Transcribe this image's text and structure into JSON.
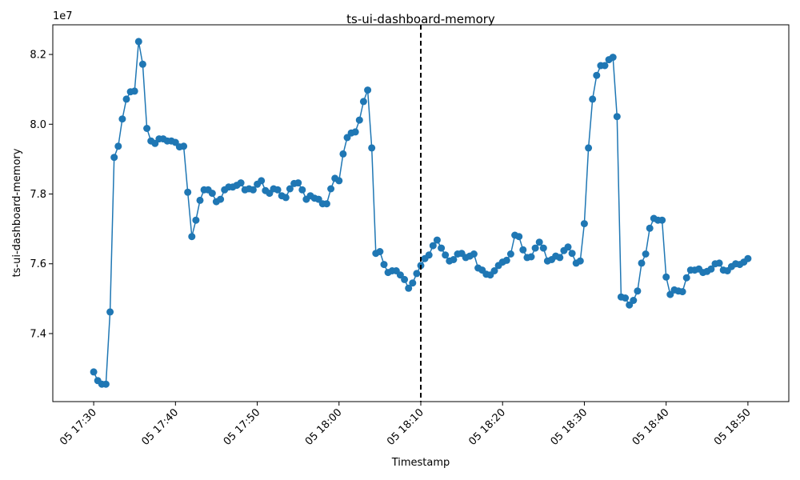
{
  "chart_data": {
    "type": "line",
    "title": "ts-ui-dashboard-memory",
    "xlabel": "Timestamp",
    "ylabel": "ts-ui-dashboard-memory",
    "y_multiplier": "1e7",
    "x_start": "17:30",
    "x_step_minutes": 0.5,
    "xlim": [
      "17:25",
      "18:55"
    ],
    "ylim": [
      72.05,
      82.85
    ],
    "x_ticks": [
      "05 17:30",
      "05 17:40",
      "05 17:50",
      "05 18:00",
      "05 18:10",
      "05 18:20",
      "05 18:30",
      "05 18:40",
      "05 18:50"
    ],
    "y_ticks": [
      "7.4",
      "7.6",
      "7.8",
      "8.0",
      "8.2"
    ],
    "vline_x": "18:10",
    "vline_style": "dashed-black",
    "line_color": "#1f77b4",
    "grid": false,
    "series": [
      {
        "marker": "circle",
        "values_unit": "millions",
        "values": [
          72.9,
          72.65,
          72.55,
          72.55,
          74.62,
          79.05,
          79.37,
          80.15,
          80.72,
          80.93,
          80.95,
          82.37,
          81.72,
          79.88,
          79.52,
          79.45,
          79.58,
          79.58,
          79.52,
          79.52,
          79.48,
          79.35,
          79.37,
          78.05,
          76.78,
          77.25,
          77.82,
          78.12,
          78.12,
          78.02,
          77.78,
          77.85,
          78.12,
          78.2,
          78.2,
          78.25,
          78.32,
          78.12,
          78.15,
          78.12,
          78.28,
          78.38,
          78.1,
          78.02,
          78.15,
          78.12,
          77.95,
          77.9,
          78.15,
          78.3,
          78.32,
          78.12,
          77.85,
          77.95,
          77.88,
          77.85,
          77.72,
          77.72,
          78.15,
          78.45,
          78.38,
          79.15,
          79.62,
          79.75,
          79.78,
          80.12,
          80.65,
          80.98,
          79.32,
          76.3,
          76.35,
          75.98,
          75.75,
          75.8,
          75.8,
          75.68,
          75.55,
          75.3,
          75.45,
          75.72,
          75.95,
          76.15,
          76.25,
          76.52,
          76.68,
          76.45,
          76.25,
          76.08,
          76.12,
          76.28,
          76.3,
          76.18,
          76.22,
          76.28,
          75.88,
          75.82,
          75.7,
          75.68,
          75.8,
          75.95,
          76.05,
          76.1,
          76.28,
          76.82,
          76.78,
          76.4,
          76.18,
          76.2,
          76.45,
          76.62,
          76.45,
          76.08,
          76.12,
          76.22,
          76.18,
          76.38,
          76.48,
          76.3,
          76.02,
          76.08,
          77.15,
          79.32,
          80.72,
          81.4,
          81.68,
          81.68,
          81.85,
          81.92,
          80.22,
          75.05,
          75.02,
          74.82,
          74.95,
          75.22,
          76.02,
          76.28,
          77.02,
          77.3,
          77.25,
          77.25,
          75.62,
          75.12,
          75.25,
          75.22,
          75.2,
          75.6,
          75.82,
          75.82,
          75.85,
          75.75,
          75.78,
          75.85,
          76.0,
          76.02,
          75.82,
          75.8,
          75.92,
          76.0,
          75.98,
          76.05,
          76.15
        ]
      }
    ]
  }
}
